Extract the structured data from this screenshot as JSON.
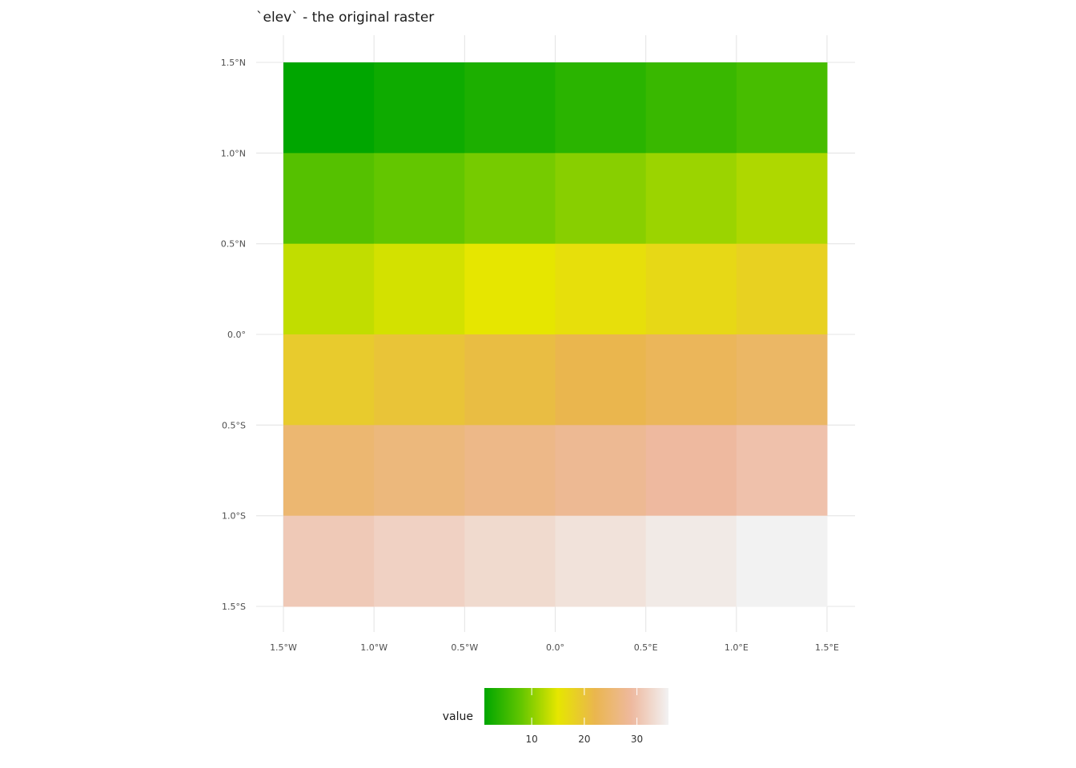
{
  "chart_data": {
    "type": "heatmap",
    "title": "`elev` - the original raster",
    "xlabel": "",
    "ylabel": "",
    "x_ticks": [
      {
        "value": -1.5,
        "label": "1.5°W"
      },
      {
        "value": -1.0,
        "label": "1.0°W"
      },
      {
        "value": -0.5,
        "label": "0.5°W"
      },
      {
        "value": 0.0,
        "label": "0.0°"
      },
      {
        "value": 0.5,
        "label": "0.5°E"
      },
      {
        "value": 1.0,
        "label": "1.0°E"
      },
      {
        "value": 1.5,
        "label": "1.5°E"
      }
    ],
    "y_ticks": [
      {
        "value": 1.5,
        "label": "1.5°N"
      },
      {
        "value": 1.0,
        "label": "1.0°N"
      },
      {
        "value": 0.5,
        "label": "0.5°N"
      },
      {
        "value": 0.0,
        "label": "0.0°"
      },
      {
        "value": -0.5,
        "label": "0.5°S"
      },
      {
        "value": -1.0,
        "label": "1.0°S"
      },
      {
        "value": -1.5,
        "label": "1.5°S"
      }
    ],
    "xlim": [
      -1.5,
      1.5
    ],
    "ylim": [
      -1.5,
      1.5
    ],
    "x_edges": [
      -1.5,
      -1.0,
      -0.5,
      0.0,
      0.5,
      1.0,
      1.5
    ],
    "y_edges": [
      1.5,
      1.0,
      0.5,
      0.0,
      -0.5,
      -1.0,
      -1.5
    ],
    "values": [
      [
        1,
        2,
        3,
        4,
        5,
        6
      ],
      [
        7,
        8,
        9,
        10,
        11,
        12
      ],
      [
        13,
        14,
        15,
        16,
        17,
        18
      ],
      [
        19,
        20,
        21,
        22,
        23,
        24
      ],
      [
        25,
        26,
        27,
        28,
        29,
        30
      ],
      [
        31,
        32,
        33,
        34,
        35,
        36
      ]
    ],
    "grid": true,
    "legend": {
      "title": "value",
      "position": "bottom",
      "range": [
        1,
        36
      ],
      "ticks": [
        10,
        20,
        30
      ],
      "colors": [
        "#00A600",
        "#63C600",
        "#E6E600",
        "#EAB64E",
        "#EEB99F",
        "#F2F2F2"
      ]
    }
  }
}
